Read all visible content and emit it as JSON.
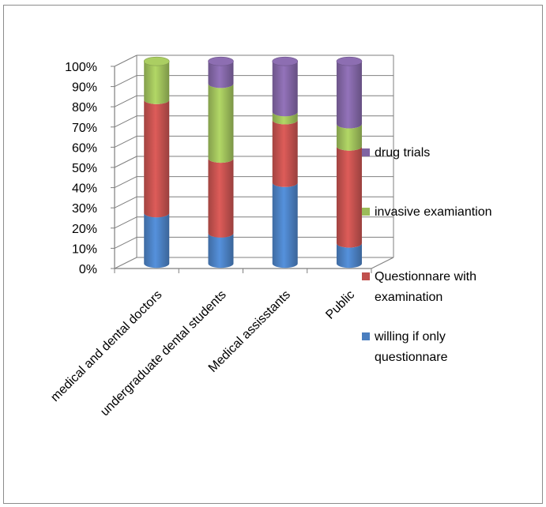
{
  "chart_data": {
    "type": "bar",
    "stacked": true,
    "percent_stacked": true,
    "style": "3d-cylinder",
    "categories": [
      "medical and dental doctors",
      "undergraduate dental students",
      "Medical assisstants",
      "Public"
    ],
    "series": [
      {
        "name": "willing if only questionnare",
        "values": [
          25,
          15,
          40,
          10
        ],
        "color": "#4a7ebf"
      },
      {
        "name": "Questionnare with examination",
        "values": [
          56,
          37,
          31,
          48
        ],
        "color": "#c0504d"
      },
      {
        "name": "invasive examiantion",
        "values": [
          19,
          37,
          4,
          11
        ],
        "color": "#9bbb59"
      },
      {
        "name": "drug trials",
        "values": [
          0,
          11,
          25,
          31
        ],
        "color": "#8064a2"
      }
    ],
    "yticks": [
      "0%",
      "10%",
      "20%",
      "30%",
      "40%",
      "50%",
      "60%",
      "70%",
      "80%",
      "90%",
      "100%"
    ],
    "ylim": [
      0,
      100
    ],
    "grid": true,
    "legend_position": "right"
  }
}
